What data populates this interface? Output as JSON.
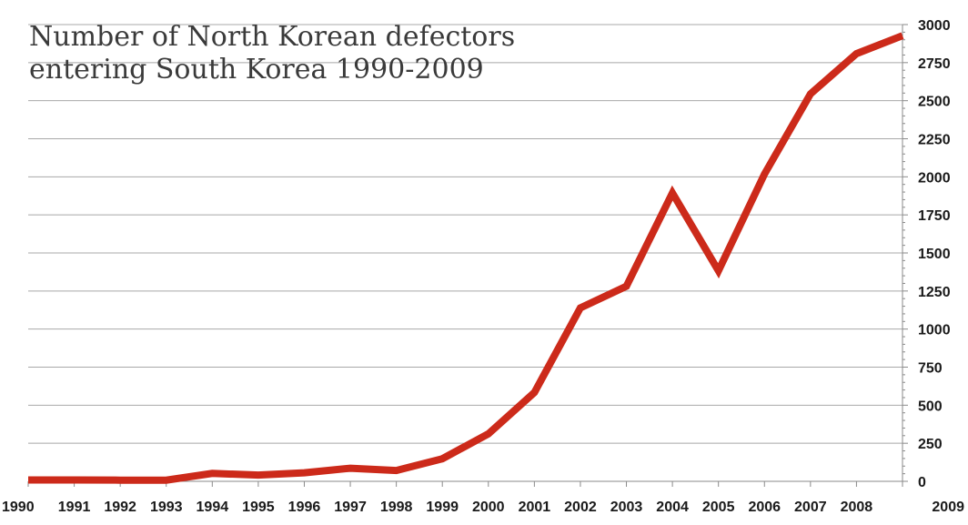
{
  "chart_data": {
    "type": "line",
    "title": "Number of North Korean defectors\nentering South Korea 1990-2009",
    "title_lines": [
      "Number of North Korean defectors",
      "entering South Korea 1990-2009"
    ],
    "xlabel": "",
    "ylabel": "",
    "x": [
      "1990",
      "1991",
      "1992",
      "1993",
      "1994",
      "1995",
      "1996",
      "1997",
      "1998",
      "1999",
      "2000",
      "2001",
      "2002",
      "2003",
      "2004",
      "2005",
      "2006",
      "2007",
      "2008",
      "2009"
    ],
    "series": [
      {
        "color": "#cc2a1a",
        "values": [
          9,
          9,
          8,
          8,
          52,
          41,
          56,
          86,
          71,
          148,
          312,
          583,
          1139,
          1281,
          1894,
          1383,
          2018,
          2544,
          2809,
          2927
        ]
      }
    ],
    "ylim": [
      0,
      3000
    ],
    "yticks": [
      0,
      250,
      500,
      750,
      1000,
      1250,
      1500,
      1750,
      2000,
      2250,
      2500,
      2750,
      3000
    ],
    "y_axis_position": "right",
    "grid": true,
    "legend": "none"
  },
  "colors": {
    "line": "#cc2a1a",
    "grid": "#a8a8a8",
    "axis": "#8a8a8a",
    "title": "#3a3a3a"
  }
}
